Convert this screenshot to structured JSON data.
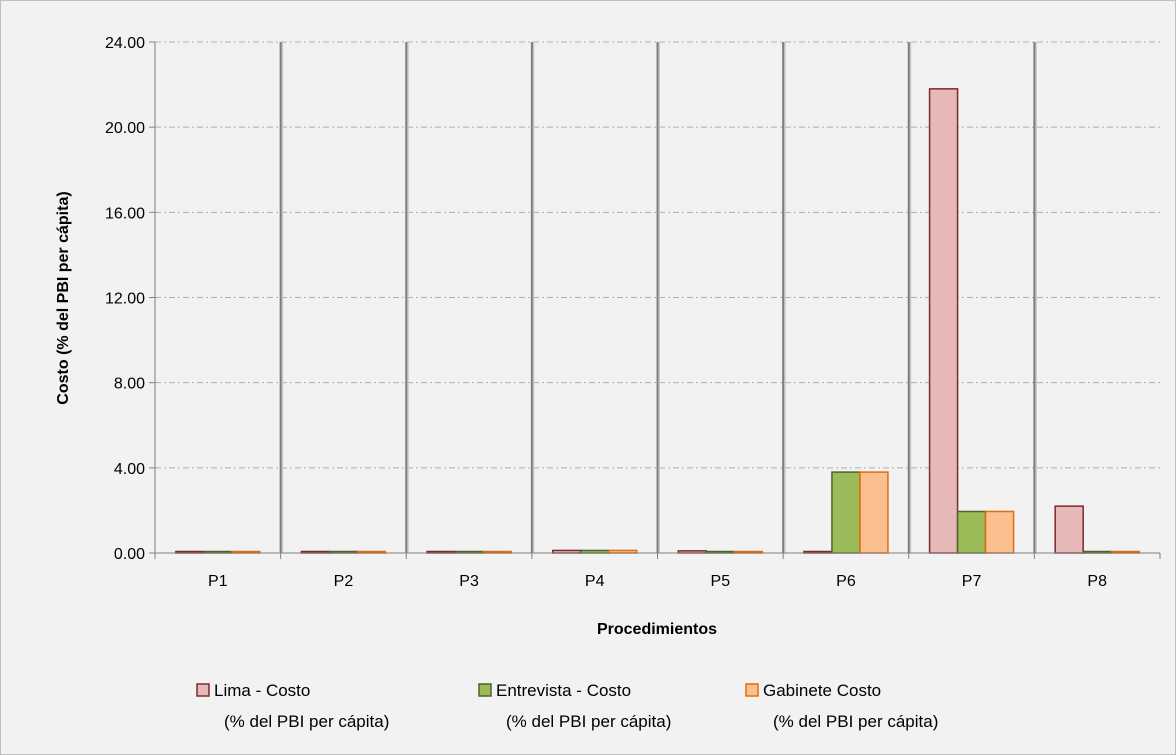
{
  "chart_data": {
    "type": "bar",
    "categories": [
      "P1",
      "P2",
      "P3",
      "P4",
      "P5",
      "P6",
      "P7",
      "P8"
    ],
    "series": [
      {
        "name": "Lima - Costo",
        "name_line2": "(% del PBI per cápita)",
        "values": [
          0.0,
          0.0,
          0.0,
          0.12,
          0.1,
          0.0,
          21.8,
          2.2
        ],
        "fill": "#e6b9b8",
        "stroke": "#7f2a2a"
      },
      {
        "name": "Entrevista - Costo",
        "name_line2": "(% del PBI per cápita)",
        "values": [
          0.0,
          0.0,
          0.0,
          0.12,
          0.04,
          3.8,
          1.95,
          0.0
        ],
        "fill": "#9bbb59",
        "stroke": "#4f6228"
      },
      {
        "name": "Gabinete Costo",
        "name_line2": "(% del PBI per cápita)",
        "values": [
          0.0,
          0.0,
          0.0,
          0.12,
          0.02,
          3.8,
          1.95,
          0.0
        ],
        "fill": "#fac090",
        "stroke": "#e46c0a"
      }
    ],
    "xlabel": "Procedimientos",
    "ylabel": "Costo (% del PBI per cápita)",
    "ylim": [
      0,
      24
    ],
    "yticks": [
      0,
      4,
      8,
      12,
      16,
      20,
      24
    ],
    "ytick_labels": [
      "0.00",
      "4.00",
      "8.00",
      "12.00",
      "16.00",
      "20.00",
      "24.00"
    ],
    "grid": true,
    "legend_position": "bottom"
  }
}
